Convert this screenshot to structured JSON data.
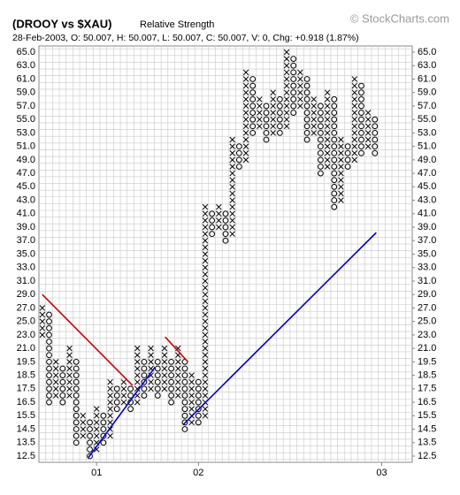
{
  "chart_data": {
    "type": "point-and-figure",
    "title": "(DROOY vs $XAU)",
    "subtitle": "Relative Strength",
    "info": "28-Feb-2003, O: 50.007, H: 50.007, L: 50.007, C: 50.007, V: 0, Chg: +0.918 (1.87%)",
    "watermark": "© StockCharts.com",
    "x_color": "#000000",
    "o_color": "#000000",
    "grid": true,
    "ylim": [
      12.5,
      65
    ],
    "yticks": [
      12.5,
      13.5,
      14.5,
      15.5,
      16.5,
      17.5,
      18.5,
      19.5,
      {
        "value": 21,
        "label": "21.0"
      },
      {
        "value": 23,
        "label": "23.0"
      },
      {
        "value": 25,
        "label": "25.0"
      },
      {
        "value": 27,
        "label": "27.0"
      },
      {
        "value": 29,
        "label": "29.0"
      },
      {
        "value": 31,
        "label": "31.0"
      },
      {
        "value": 33,
        "label": "33.0"
      },
      {
        "value": 35,
        "label": "35.0"
      },
      {
        "value": 37,
        "label": "37.0"
      },
      {
        "value": 39,
        "label": "39.0"
      },
      {
        "value": 41,
        "label": "41.0"
      },
      {
        "value": 43,
        "label": "43.0"
      },
      {
        "value": 45,
        "label": "45.0"
      },
      {
        "value": 47,
        "label": "47.0"
      },
      {
        "value": 49,
        "label": "49.0"
      },
      {
        "value": 51,
        "label": "51.0"
      },
      {
        "value": 53,
        "label": "53.0"
      },
      {
        "value": 55,
        "label": "55.0"
      },
      {
        "value": 57,
        "label": "57.0"
      },
      {
        "value": 59,
        "label": "59.0"
      },
      {
        "value": 61,
        "label": "61.0"
      },
      {
        "value": 63,
        "label": "63.0"
      },
      {
        "value": 65,
        "label": "65.0"
      }
    ],
    "xlim": [
      -0.5,
      54.5
    ],
    "xticks": [
      {
        "value": 8,
        "label": "01"
      },
      {
        "value": 23,
        "label": "02"
      },
      {
        "value": 50,
        "label": "03"
      }
    ],
    "columns": [
      {
        "type": "X",
        "low": 23,
        "high": 27
      },
      {
        "type": "O",
        "low": 16.5,
        "high": 26
      },
      {
        "type": "X",
        "low": 17,
        "high": 19.5
      },
      {
        "type": "O",
        "low": 16.5,
        "high": 19
      },
      {
        "type": "X",
        "low": 17,
        "high": 21
      },
      {
        "type": "O",
        "low": 13.5,
        "high": 19.5
      },
      {
        "type": "X",
        "low": 14,
        "high": 15.5
      },
      {
        "type": "O",
        "low": 12.5,
        "high": 15
      },
      {
        "type": "X",
        "low": 13,
        "high": 16
      },
      {
        "type": "O",
        "low": 13.5,
        "high": 15.5
      },
      {
        "type": "X",
        "low": 14,
        "high": 18
      },
      {
        "type": "O",
        "low": 16,
        "high": 17.5
      },
      {
        "type": "X",
        "low": 16.5,
        "high": 18
      },
      {
        "type": "O",
        "low": 16,
        "high": 17.5
      },
      {
        "type": "X",
        "low": 16.5,
        "high": 21
      },
      {
        "type": "O",
        "low": 17,
        "high": 19.5
      },
      {
        "type": "X",
        "low": 17.5,
        "high": 21
      },
      {
        "type": "O",
        "low": 17,
        "high": 19.5
      },
      {
        "type": "X",
        "low": 17.5,
        "high": 21
      },
      {
        "type": "O",
        "low": 16.5,
        "high": 19.5
      },
      {
        "type": "X",
        "low": 17,
        "high": 21
      },
      {
        "type": "O",
        "low": 14.5,
        "high": 19.5
      },
      {
        "type": "X",
        "low": 15,
        "high": 18.5
      },
      {
        "type": "O",
        "low": 15,
        "high": 18
      },
      {
        "type": "X",
        "low": 15.5,
        "high": 42
      },
      {
        "type": "O",
        "low": 38,
        "high": 41
      },
      {
        "type": "X",
        "low": 39,
        "high": 42
      },
      {
        "type": "O",
        "low": 37,
        "high": 41
      },
      {
        "type": "X",
        "low": 38,
        "high": 52
      },
      {
        "type": "O",
        "low": 48,
        "high": 51
      },
      {
        "type": "X",
        "low": 49,
        "high": 62
      },
      {
        "type": "O",
        "low": 53,
        "high": 61
      },
      {
        "type": "X",
        "low": 54,
        "high": 58
      },
      {
        "type": "O",
        "low": 52,
        "high": 57
      },
      {
        "type": "X",
        "low": 53,
        "high": 59
      },
      {
        "type": "O",
        "low": 53,
        "high": 58
      },
      {
        "type": "X",
        "low": 54,
        "high": 65
      },
      {
        "type": "O",
        "low": 56,
        "high": 64
      },
      {
        "type": "X",
        "low": 57,
        "high": 62
      },
      {
        "type": "O",
        "low": 52,
        "high": 61
      },
      {
        "type": "X",
        "low": 53,
        "high": 58
      },
      {
        "type": "O",
        "low": 47,
        "high": 57
      },
      {
        "type": "X",
        "low": 48,
        "high": 59
      },
      {
        "type": "O",
        "low": 42,
        "high": 58
      },
      {
        "type": "X",
        "low": 43,
        "high": 52
      },
      {
        "type": "O",
        "low": 48,
        "high": 51
      },
      {
        "type": "X",
        "low": 49,
        "high": 61
      },
      {
        "type": "O",
        "low": 50,
        "high": 60
      },
      {
        "type": "X",
        "low": 51,
        "high": 56
      },
      {
        "type": "O",
        "low": 50,
        "high": 55
      }
    ],
    "trendlines": [
      {
        "color": "#cc0000",
        "x": [
          0,
          13.3
        ],
        "values": [
          29,
          17.75
        ]
      },
      {
        "color": "#0000cc",
        "x": [
          6.8,
          16.6
        ],
        "values": [
          12.4,
          19.1
        ]
      },
      {
        "color": "#cc0000",
        "x": [
          18.1,
          21.4
        ],
        "values": [
          22.7,
          19.55
        ]
      },
      {
        "color": "#0000cc",
        "x": [
          20.8,
          49.2
        ],
        "values": [
          14.86,
          38.2
        ]
      }
    ]
  }
}
